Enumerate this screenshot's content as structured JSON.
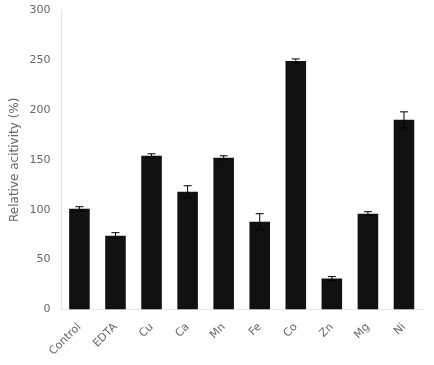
{
  "chart_data": {
    "type": "bar",
    "ylabel": "Relative acitivity (%)",
    "categories": [
      "Control",
      "EDTA",
      "Cu",
      "Ca",
      "Mn",
      "Fe",
      "Co",
      "Zn",
      "Mg",
      "Ni"
    ],
    "values": [
      101,
      74,
      154,
      118,
      152,
      88,
      249,
      31,
      96,
      190
    ],
    "errors": [
      2,
      3,
      2,
      6,
      2,
      8,
      2,
      2,
      2,
      8
    ],
    "color": "#111111",
    "ylim": [
      0,
      300
    ],
    "yticks": [
      0,
      50,
      100,
      150,
      200,
      250,
      300
    ],
    "grid": false
  }
}
